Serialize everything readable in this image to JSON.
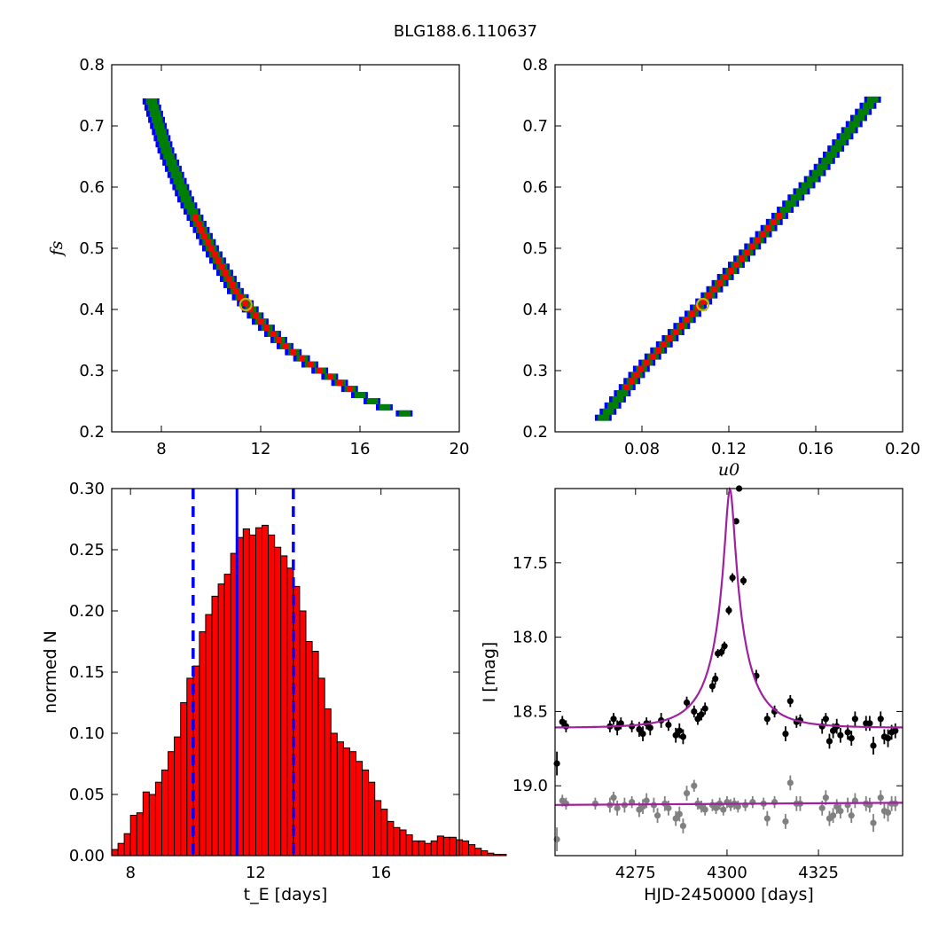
{
  "title": "BLG188.6.110637",
  "colors": {
    "outer": "#0000ff",
    "mid": "#008000",
    "inner": "#ff0000",
    "core": "#000000",
    "best_marker": "#c8b400",
    "hist_fill": "#ff0000",
    "median_line": "#0000ff",
    "model_line": "#a020a0",
    "data_primary": "#000000",
    "data_secondary": "#808080"
  },
  "chart_data": [
    {
      "type": "heatmap",
      "panel": "fs-vs-tE",
      "xlabel": "",
      "ylabel": "f_s",
      "xlim": [
        6,
        20
      ],
      "ylim": [
        0.2,
        0.8
      ],
      "xticks": [
        "8",
        "12",
        "16",
        "20"
      ],
      "yticks": [
        "0.2",
        "0.3",
        "0.4",
        "0.5",
        "0.6",
        "0.7",
        "0.8"
      ],
      "ridge": [
        [
          7.6,
          0.745
        ],
        [
          8.2,
          0.665
        ],
        [
          9.0,
          0.585
        ],
        [
          10.0,
          0.505
        ],
        [
          11.0,
          0.435
        ],
        [
          12.0,
          0.385
        ],
        [
          13.0,
          0.345
        ],
        [
          14.0,
          0.315
        ],
        [
          15.0,
          0.29
        ],
        [
          16.0,
          0.265
        ],
        [
          17.0,
          0.245
        ],
        [
          18.2,
          0.23
        ]
      ],
      "best_fit": [
        11.4,
        0.408
      ]
    },
    {
      "type": "heatmap",
      "panel": "fs-vs-u0",
      "xlabel": "u_0",
      "ylabel": "",
      "xlim": [
        0.04,
        0.2
      ],
      "ylim": [
        0.2,
        0.8
      ],
      "xticks": [
        "0.08",
        "0.12",
        "0.16",
        "0.20"
      ],
      "yticks": [
        "0.2",
        "0.3",
        "0.4",
        "0.5",
        "0.6",
        "0.7",
        "0.8"
      ],
      "ridge": [
        [
          0.062,
          0.228
        ],
        [
          0.08,
          0.31
        ],
        [
          0.1,
          0.385
        ],
        [
          0.12,
          0.465
        ],
        [
          0.14,
          0.545
        ],
        [
          0.16,
          0.625
        ],
        [
          0.18,
          0.72
        ],
        [
          0.186,
          0.748
        ]
      ],
      "best_fit": [
        0.108,
        0.408
      ]
    },
    {
      "type": "bar",
      "panel": "tE-histogram",
      "xlabel": "t_E [days]",
      "ylabel": "normed N",
      "xlim": [
        7.4,
        18.5
      ],
      "ylim": [
        0,
        0.3
      ],
      "xticks": [
        "8",
        "12",
        "16"
      ],
      "yticks": [
        "0.00",
        "0.05",
        "0.10",
        "0.15",
        "0.20",
        "0.25",
        "0.30"
      ],
      "bin_start": 7.4,
      "bin_width": 0.2,
      "values": [
        0.005,
        0.01,
        0.018,
        0.033,
        0.035,
        0.052,
        0.05,
        0.06,
        0.07,
        0.085,
        0.097,
        0.125,
        0.145,
        0.155,
        0.183,
        0.197,
        0.212,
        0.222,
        0.23,
        0.247,
        0.26,
        0.267,
        0.262,
        0.268,
        0.27,
        0.262,
        0.252,
        0.245,
        0.235,
        0.22,
        0.2,
        0.175,
        0.167,
        0.145,
        0.12,
        0.1,
        0.093,
        0.088,
        0.085,
        0.077,
        0.07,
        0.06,
        0.045,
        0.038,
        0.028,
        0.023,
        0.021,
        0.017,
        0.012,
        0.012,
        0.01,
        0.012,
        0.016,
        0.015,
        0.015,
        0.013,
        0.012,
        0.009,
        0.006,
        0.004,
        0.002,
        0.001,
        0.001
      ],
      "median": 11.4,
      "lower": 10.0,
      "upper": 13.2
    },
    {
      "type": "scatter",
      "panel": "lightcurve",
      "xlabel": "HJD-2450000 [days]",
      "ylabel": "I [mag]",
      "xlim": [
        4253,
        4348
      ],
      "ylim": [
        19.47,
        17.0
      ],
      "xticks": [
        "4275",
        "4300",
        "4325"
      ],
      "yticks": [
        "17.5",
        "18.0",
        "18.5",
        "19.0"
      ],
      "model": {
        "t0": 4300.8,
        "tE": 11.4,
        "u0": 0.108,
        "fs": 0.408,
        "base": 18.61
      },
      "model_secondary_base": 19.12,
      "series": [
        {
          "name": "",
          "points": [
            [
              4253.5,
              18.85,
              0.08
            ],
            [
              4255,
              18.57,
              0.04
            ],
            [
              4256,
              18.6,
              0.04
            ],
            [
              4268,
              18.6,
              0.04
            ],
            [
              4269,
              18.55,
              0.04
            ],
            [
              4270,
              18.61,
              0.05
            ],
            [
              4271,
              18.58,
              0.04
            ],
            [
              4274,
              18.6,
              0.04
            ],
            [
              4276,
              18.62,
              0.05
            ],
            [
              4277,
              18.65,
              0.05
            ],
            [
              4278,
              18.58,
              0.04
            ],
            [
              4279,
              18.61,
              0.05
            ],
            [
              4282,
              18.56,
              0.05
            ],
            [
              4284,
              18.59,
              0.04
            ],
            [
              4286,
              18.66,
              0.05
            ],
            [
              4287,
              18.63,
              0.05
            ],
            [
              4288,
              18.67,
              0.05
            ],
            [
              4289,
              18.44,
              0.04
            ],
            [
              4291,
              18.5,
              0.04
            ],
            [
              4292,
              18.55,
              0.04
            ],
            [
              4293,
              18.52,
              0.04
            ],
            [
              4294,
              18.48,
              0.04
            ],
            [
              4296,
              18.33,
              0.04
            ],
            [
              4296.8,
              18.28,
              0.04
            ],
            [
              4297.5,
              18.11,
              0.03
            ],
            [
              4298.5,
              18.1,
              0.03
            ],
            [
              4299.3,
              18.06,
              0.03
            ],
            [
              4300.5,
              17.82,
              0.03
            ],
            [
              4301.5,
              17.6,
              0.03
            ],
            [
              4302.5,
              17.22,
              0.02
            ],
            [
              4303.3,
              17.0,
              0.02
            ],
            [
              4304.5,
              17.62,
              0.03
            ],
            [
              4308,
              18.26,
              0.04
            ],
            [
              4311,
              18.55,
              0.04
            ],
            [
              4313,
              18.5,
              0.04
            ],
            [
              4316,
              18.65,
              0.05
            ],
            [
              4317.3,
              18.43,
              0.04
            ],
            [
              4319,
              18.57,
              0.04
            ],
            [
              4320,
              18.56,
              0.04
            ],
            [
              4326,
              18.6,
              0.05
            ],
            [
              4327,
              18.55,
              0.04
            ],
            [
              4328,
              18.7,
              0.05
            ],
            [
              4329,
              18.63,
              0.05
            ],
            [
              4330,
              18.6,
              0.05
            ],
            [
              4331,
              18.66,
              0.05
            ],
            [
              4333,
              18.64,
              0.05
            ],
            [
              4334,
              18.68,
              0.05
            ],
            [
              4335,
              18.55,
              0.05
            ],
            [
              4338,
              18.58,
              0.05
            ],
            [
              4339,
              18.58,
              0.05
            ],
            [
              4340,
              18.73,
              0.06
            ],
            [
              4342,
              18.55,
              0.05
            ],
            [
              4343,
              18.67,
              0.05
            ],
            [
              4344,
              18.68,
              0.06
            ],
            [
              4345,
              18.64,
              0.05
            ],
            [
              4346,
              18.63,
              0.05
            ]
          ]
        },
        {
          "name": "",
          "points": [
            [
              4253.5,
              19.36,
              0.08
            ],
            [
              4255,
              19.1,
              0.04
            ],
            [
              4256,
              19.12,
              0.04
            ],
            [
              4264,
              19.12,
              0.04
            ],
            [
              4268,
              19.13,
              0.05
            ],
            [
              4269,
              19.08,
              0.04
            ],
            [
              4270,
              19.15,
              0.05
            ],
            [
              4272,
              19.13,
              0.05
            ],
            [
              4274,
              19.11,
              0.04
            ],
            [
              4276,
              19.16,
              0.05
            ],
            [
              4277,
              19.14,
              0.05
            ],
            [
              4278,
              19.1,
              0.05
            ],
            [
              4280,
              19.13,
              0.05
            ],
            [
              4281,
              19.2,
              0.05
            ],
            [
              4283,
              19.12,
              0.05
            ],
            [
              4284,
              19.15,
              0.05
            ],
            [
              4286,
              19.22,
              0.05
            ],
            [
              4287,
              19.19,
              0.05
            ],
            [
              4288,
              19.27,
              0.05
            ],
            [
              4289,
              19.05,
              0.05
            ],
            [
              4291,
              19.0,
              0.04
            ],
            [
              4292,
              19.12,
              0.04
            ],
            [
              4293,
              19.14,
              0.04
            ],
            [
              4294,
              19.16,
              0.04
            ],
            [
              4296,
              19.13,
              0.04
            ],
            [
              4297,
              19.15,
              0.04
            ],
            [
              4298,
              19.12,
              0.04
            ],
            [
              4299,
              19.16,
              0.04
            ],
            [
              4300,
              19.11,
              0.04
            ],
            [
              4301,
              19.13,
              0.04
            ],
            [
              4302,
              19.12,
              0.04
            ],
            [
              4303,
              19.14,
              0.04
            ],
            [
              4305,
              19.13,
              0.04
            ],
            [
              4307,
              19.11,
              0.04
            ],
            [
              4310,
              19.12,
              0.04
            ],
            [
              4311,
              19.22,
              0.05
            ],
            [
              4313,
              19.11,
              0.04
            ],
            [
              4316,
              19.24,
              0.05
            ],
            [
              4317.3,
              18.98,
              0.05
            ],
            [
              4319,
              19.12,
              0.05
            ],
            [
              4320,
              19.12,
              0.05
            ],
            [
              4326,
              19.15,
              0.05
            ],
            [
              4327,
              19.08,
              0.05
            ],
            [
              4328,
              19.22,
              0.05
            ],
            [
              4329,
              19.2,
              0.05
            ],
            [
              4330,
              19.14,
              0.05
            ],
            [
              4331,
              19.17,
              0.05
            ],
            [
              4333,
              19.13,
              0.05
            ],
            [
              4334,
              19.2,
              0.05
            ],
            [
              4335,
              19.1,
              0.05
            ],
            [
              4338,
              19.12,
              0.05
            ],
            [
              4339,
              19.13,
              0.05
            ],
            [
              4340,
              19.25,
              0.06
            ],
            [
              4342,
              19.08,
              0.05
            ],
            [
              4343,
              19.17,
              0.05
            ],
            [
              4344,
              19.18,
              0.06
            ],
            [
              4345,
              19.12,
              0.05
            ],
            [
              4346,
              19.12,
              0.05
            ]
          ]
        }
      ]
    }
  ]
}
